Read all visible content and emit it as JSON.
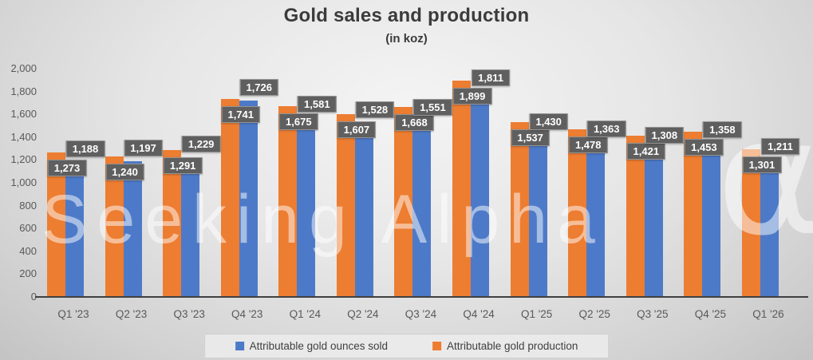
{
  "title": "Gold sales and production",
  "subtitle": "(in koz)",
  "watermark": {
    "text": "Seeking Alpha",
    "alpha_symbol": "α"
  },
  "colors": {
    "sold_blue": "#4d7ac8",
    "production_orange": "#ED7D31",
    "label_badge_bg": "#5f5f5f",
    "label_badge_text": "#ffffff",
    "axis_line": "#404040",
    "axis_text": "#595959",
    "title_text": "#3b3b3b"
  },
  "chart_data": {
    "type": "bar",
    "title": "Gold sales and production",
    "subtitle": "(in koz)",
    "categories": [
      "Q1 '23",
      "Q2 '23",
      "Q3 '23",
      "Q4 '23",
      "Q1 '24",
      "Q2 '24",
      "Q3 '24",
      "Q4 '24",
      "Q1 '25",
      "Q2 '25",
      "Q3 '25",
      "Q4 '25",
      "Q1 '26"
    ],
    "series": [
      {
        "name": "Attributable gold ounces sold",
        "color": "#4d7ac8",
        "values": [
          1188,
          1197,
          1229,
          1726,
          1581,
          1528,
          1551,
          1811,
          1430,
          1363,
          1308,
          1358,
          1211
        ]
      },
      {
        "name": "Attributable gold production",
        "color": "#ED7D31",
        "values": [
          1273,
          1240,
          1291,
          1741,
          1675,
          1607,
          1668,
          1899,
          1537,
          1478,
          1421,
          1453,
          1301
        ]
      }
    ],
    "ylabel": "",
    "xlabel": "",
    "ylim": [
      0,
      2000
    ],
    "ytick_step": 200,
    "grid": false,
    "legend_position": "bottom",
    "data_labels": true
  }
}
